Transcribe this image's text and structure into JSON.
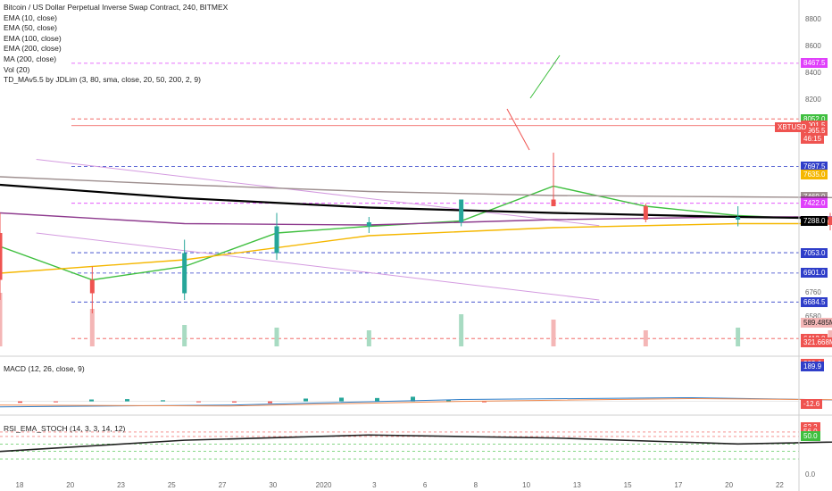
{
  "legend": [
    "Bitcoin / US Dollar Perpetual Inverse Swap Contract, 240, BITMEX",
    "EMA (10, close)",
    "EMA (50, close)",
    "EMA (100, close)",
    "EMA (200, close)",
    "MA (200, close)",
    "Vol (20)",
    "TD_MAv5.5 by JDLim (3, 80, sma, close, 20, 50, 200, 2, 9)"
  ],
  "macd_label": "MACD (12, 26, close, 9)",
  "rsi_label": "RSI_EMA_STOCH (14, 3, 3, 14, 12)",
  "colors": {
    "up": "#26a69a",
    "down": "#ef5350",
    "ema10": "#3fbf3f",
    "ema50": "#f5b700",
    "ema100": "#8e3b8e",
    "ma200": "#9e8f8f",
    "ema200": "#000000",
    "channel": "#d49be0"
  },
  "chart_data": [
    {
      "type": "line",
      "panel": "price",
      "ylim": [
        6300,
        8900
      ],
      "yticks": [
        6580,
        6760,
        8200,
        8400,
        8600,
        8800
      ],
      "xticks": [
        "18",
        "20",
        "23",
        "25",
        "27",
        "30",
        "2020",
        "3",
        "6",
        "8",
        "10",
        "13",
        "15",
        "17",
        "20",
        "22"
      ],
      "price_tags": [
        {
          "label": "8467.5",
          "value": 8467.5,
          "color": "#e040fb"
        },
        {
          "label": "8052.0",
          "value": 8052,
          "color": "#3fbf3f"
        },
        {
          "label": "8001.5",
          "value": 8001.5,
          "color": "#ef5350"
        },
        {
          "label": "7965.5",
          "value": 7965.5,
          "color": "#ef5350"
        },
        {
          "label": "46:15",
          "value": 7905,
          "color": "#ef5350"
        },
        {
          "label": "7697.5",
          "value": 7697.5,
          "color": "#2f3ec9"
        },
        {
          "label": "7635.0",
          "value": 7635,
          "color": "#f5b700"
        },
        {
          "label": "7469.0",
          "value": 7469,
          "color": "#9e8f8f"
        },
        {
          "label": "7436.5",
          "value": 7436.5,
          "color": "#8e3b8e"
        },
        {
          "label": "7422.0",
          "value": 7422,
          "color": "#e040fb"
        },
        {
          "label": "7288.0",
          "value": 7288,
          "color": "#000000"
        },
        {
          "label": "7053.0",
          "value": 7053,
          "color": "#2f3ec9"
        },
        {
          "label": "6901.0",
          "value": 6901,
          "color": "#2f3ec9"
        },
        {
          "label": "6684.5",
          "value": 6684.5,
          "color": "#2f3ec9"
        },
        {
          "label": "6412.0",
          "value": 6412,
          "color": "#ef5350"
        }
      ],
      "symbol_tag": "XBTUSD",
      "volume_tags": [
        "589.485M",
        "321.668M"
      ],
      "horizontal_levels": [
        {
          "value": 8467.5,
          "color": "#e040fb",
          "style": "dashed"
        },
        {
          "value": 8052,
          "color": "#ef5350",
          "style": "dashed"
        },
        {
          "value": 8001.5,
          "color": "#ef5350",
          "style": "solid"
        },
        {
          "value": 7697.5,
          "color": "#2f3ec9",
          "style": "dashed"
        },
        {
          "value": 7422,
          "color": "#e040fb",
          "style": "dashed"
        },
        {
          "value": 7053,
          "color": "#2f3ec9",
          "style": "dashed"
        },
        {
          "value": 6901,
          "color": "#2f3ec9",
          "style": "dashed"
        },
        {
          "value": 6684.5,
          "color": "#2f3ec9",
          "style": "dashed"
        },
        {
          "value": 6412,
          "color": "#ef5350",
          "style": "dashed"
        }
      ],
      "channel_lines": [
        {
          "x": [
            19.3,
            21.8
          ],
          "y": [
            7750,
            7255
          ]
        },
        {
          "x": [
            19.3,
            21.8
          ],
          "y": [
            7200,
            6700
          ]
        }
      ],
      "series": [
        {
          "name": "EMA (10, close)",
          "key": "ema10",
          "x": [
            0,
            0.4,
            0.8,
            1.2,
            1.6,
            2.0,
            2.4,
            2.8,
            3.2,
            3.6,
            4.0,
            4.4,
            4.8,
            5.2,
            5.6,
            6.0,
            6.4,
            6.8,
            7.2,
            7.6,
            8.0,
            8.4,
            8.6,
            8.8
          ],
          "y": [
            7100,
            6850,
            6950,
            7200,
            7250,
            7290,
            7550,
            7400,
            7330,
            7300,
            7280,
            7350,
            7450,
            7350,
            7300,
            7220,
            7050,
            7300,
            7430,
            7550,
            7650,
            8150,
            8150,
            8090
          ]
        },
        {
          "name": "EMA (50, close)",
          "key": "ema50",
          "x": [
            0,
            0.8,
            1.6,
            2.4,
            3.2,
            4.0,
            4.8,
            5.6,
            6.4,
            7.2,
            8.0,
            8.4,
            8.8
          ],
          "y": [
            6900,
            7000,
            7180,
            7240,
            7270,
            7270,
            7290,
            7300,
            7280,
            7320,
            7400,
            7550,
            7635
          ]
        },
        {
          "name": "EMA (100, close)",
          "key": "ema100",
          "x": [
            0,
            0.8,
            1.6,
            2.4,
            3.2,
            4.0,
            4.8,
            5.6,
            6.4,
            7.2,
            8.0,
            8.4,
            8.8
          ],
          "y": [
            7350,
            7270,
            7260,
            7300,
            7320,
            7320,
            7330,
            7330,
            7310,
            7330,
            7370,
            7410,
            7470
          ]
        },
        {
          "name": "MA (200, close)",
          "key": "ma200",
          "x": [
            0,
            0.8,
            1.6,
            2.4,
            3.2,
            4.0,
            4.8,
            5.6,
            6.4,
            7.2,
            8.0,
            8.8
          ],
          "y": [
            7620,
            7560,
            7510,
            7480,
            7470,
            7460,
            7440,
            7420,
            7410,
            7400,
            7410,
            7440
          ]
        },
        {
          "name": "EMA (200, close)",
          "key": "ema200",
          "x": [
            0,
            0.8,
            1.6,
            2.4,
            3.2,
            4.0,
            4.8,
            5.6,
            6.4,
            7.2,
            8.0,
            8.8
          ],
          "y": [
            7560,
            7460,
            7390,
            7350,
            7320,
            7300,
            7310,
            7300,
            7265,
            7250,
            7270,
            7305
          ]
        }
      ],
      "candles": {
        "x": [
          0,
          0.4,
          0.8,
          1.2,
          1.6,
          2.0,
          2.4,
          2.8,
          3.2,
          3.6,
          4.0,
          4.4,
          4.8,
          5.2,
          5.6,
          6.0,
          6.4,
          6.8,
          7.2,
          7.6,
          8.0,
          8.2,
          8.4,
          8.6,
          8.8
        ],
        "open": [
          7200,
          6850,
          6750,
          7050,
          7250,
          7280,
          7450,
          7400,
          7300,
          7320,
          7260,
          7350,
          7480,
          7330,
          7300,
          7250,
          7000,
          7280,
          7400,
          7550,
          7650,
          8100,
          8300,
          8250,
          8050
        ],
        "high": [
          7350,
          6950,
          7150,
          7350,
          7320,
          7450,
          7800,
          7420,
          7400,
          7350,
          7400,
          7550,
          7600,
          7400,
          7350,
          7300,
          7100,
          7450,
          7600,
          7800,
          8200,
          8450,
          8550,
          8350,
          8100
        ],
        "low": [
          6700,
          6600,
          6700,
          7000,
          7200,
          7250,
          7400,
          7280,
          7250,
          7220,
          7220,
          7320,
          7300,
          7280,
          7200,
          6950,
          6900,
          7250,
          7380,
          7500,
          7600,
          8050,
          8200,
          7950,
          7950
        ],
        "close": [
          6850,
          6750,
          7050,
          7250,
          7280,
          7450,
          7400,
          7300,
          7320,
          7260,
          7350,
          7480,
          7330,
          7300,
          7250,
          7000,
          7280,
          7400,
          7550,
          7650,
          8100,
          8300,
          8250,
          8050,
          7965
        ]
      },
      "volume": [
        1.0,
        0.7,
        0.4,
        0.35,
        0.3,
        0.6,
        0.5,
        0.3,
        0.35,
        0.3,
        0.3,
        0.4,
        0.55,
        0.3,
        0.3,
        0.55,
        0.7,
        0.3,
        0.4,
        0.6,
        0.8,
        1.0,
        0.9,
        0.7,
        0.6
      ]
    },
    {
      "type": "line",
      "panel": "macd",
      "ylim": [
        -60,
        230
      ],
      "tags": [
        {
          "label": "202.6",
          "value": 202.6,
          "color": "#ef5350"
        },
        {
          "label": "189.9",
          "value": 189.9,
          "color": "#2f3ec9"
        },
        {
          "label": "-12.6",
          "value": -12.6,
          "color": "#ef5350"
        }
      ],
      "series": [
        {
          "name": "MACD",
          "key": "macd",
          "x": [
            0,
            1,
            2,
            3,
            4,
            5,
            6,
            7,
            8,
            8.6,
            8.8
          ],
          "y": [
            -30,
            -20,
            10,
            20,
            0,
            -10,
            -30,
            40,
            120,
            205,
            190
          ]
        },
        {
          "name": "Signal",
          "key": "signal",
          "x": [
            0,
            1,
            2,
            3,
            4,
            5,
            6,
            7,
            8,
            8.6,
            8.8
          ],
          "y": [
            -20,
            -25,
            0,
            15,
            5,
            -5,
            -20,
            20,
            100,
            185,
            202
          ]
        }
      ],
      "histogram": [
        -8,
        -5,
        10,
        12,
        6,
        -5,
        -6,
        -10,
        15,
        20,
        18,
        25,
        10,
        -5
      ]
    },
    {
      "type": "line",
      "panel": "rsi",
      "ylim": [
        -5,
        75
      ],
      "yticks": [
        0.0
      ],
      "tags": [
        {
          "label": "62.2",
          "value": 62.2,
          "color": "#ef5350"
        },
        {
          "label": "56.0",
          "value": 56.0,
          "color": "#ef5350"
        },
        {
          "label": "50.0",
          "value": 50.0,
          "color": "#3fbf3f"
        }
      ],
      "levels": [
        56,
        50,
        40,
        30,
        20
      ],
      "series": [
        {
          "name": "RSI",
          "key": "rsi",
          "x": [
            0,
            0.8,
            1.6,
            2.4,
            3.2,
            4.0,
            4.8,
            5.6,
            6.4,
            7.2,
            8.0,
            8.6,
            8.8
          ],
          "y": [
            30,
            45,
            52,
            48,
            40,
            45,
            50,
            42,
            38,
            50,
            55,
            52,
            45
          ]
        }
      ]
    }
  ]
}
